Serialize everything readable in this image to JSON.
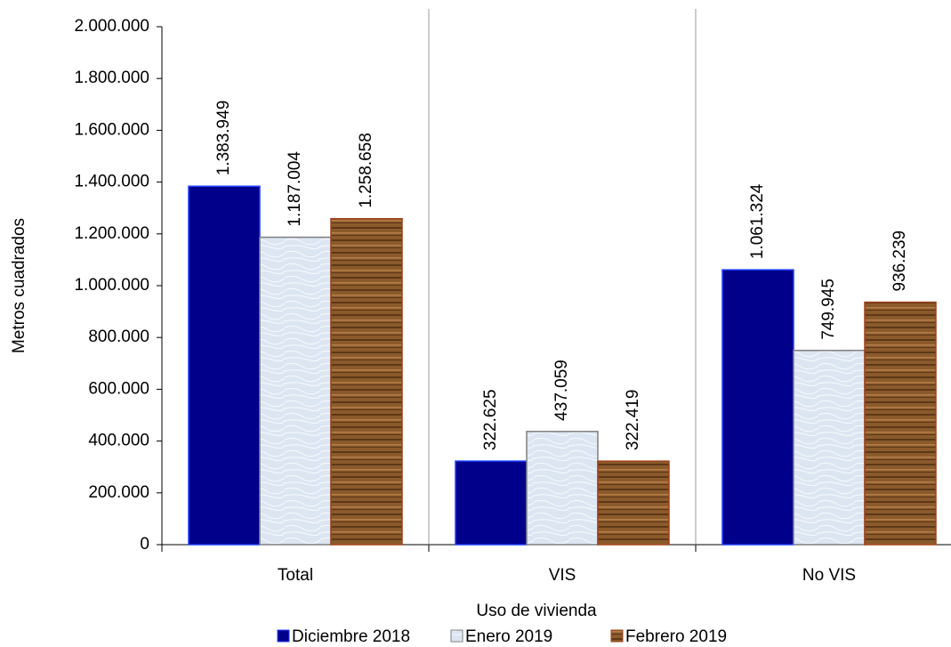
{
  "chart_data": {
    "type": "bar",
    "x_label": "Uso de vivienda",
    "y_label": "Metros cuadrados",
    "categories": [
      "Total",
      "VIS",
      "No VIS"
    ],
    "series": [
      {
        "name": "Diciembre 2018",
        "color": "#00008b",
        "values": [
          1383949,
          322625,
          1061324
        ],
        "value_labels": [
          "1.383.949",
          "322.625",
          "1.061.324"
        ]
      },
      {
        "name": "Enero 2019",
        "color": "#dce6f2",
        "values": [
          1187004,
          437059,
          749945
        ],
        "value_labels": [
          "1.187.004",
          "437.059",
          "749.945"
        ]
      },
      {
        "name": "Febrero 2019",
        "color": "#8b5a2b",
        "values": [
          1258658,
          322419,
          936239
        ],
        "value_labels": [
          "1.258.658",
          "322.419",
          "936.239"
        ]
      }
    ],
    "ylim": [
      0,
      2000000
    ],
    "yticks": [
      0,
      {
        "value": 200000,
        "label": "200.000"
      },
      {
        "value": 400000,
        "label": "400.000"
      },
      {
        "value": 600000,
        "label": "600.000"
      },
      {
        "value": 800000,
        "label": "800.000"
      },
      {
        "value": 1000000,
        "label": "1.000.000"
      },
      {
        "value": 1200000,
        "label": "1.200.000"
      },
      {
        "value": 1400000,
        "label": "1.400.000"
      },
      {
        "value": 1600000,
        "label": "1.600.000"
      },
      {
        "value": 1800000,
        "label": "1.800.000"
      },
      {
        "value": 2000000,
        "label": "2.000.000"
      }
    ],
    "legend": "bottom"
  }
}
